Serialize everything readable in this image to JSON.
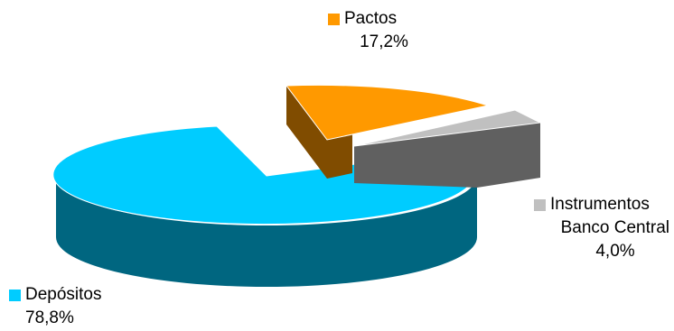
{
  "chart_data": {
    "type": "pie",
    "title": "",
    "slices": [
      {
        "label": "Depósitos",
        "label_line2": "",
        "value_label": "78,8%",
        "value": 78.8,
        "color": "#00CCFF",
        "side_color": "#006680"
      },
      {
        "label": "Pactos",
        "label_line2": "",
        "value_label": "17,2%",
        "value": 17.2,
        "color": "#FF9900",
        "side_color": "#804C00"
      },
      {
        "label": "Instrumentos",
        "label_line2": "Banco Central",
        "value_label": "4,0%",
        "value": 4.0,
        "color": "#C0C0C0",
        "side_color": "#606060"
      }
    ],
    "legend": "labels-at-slices"
  }
}
